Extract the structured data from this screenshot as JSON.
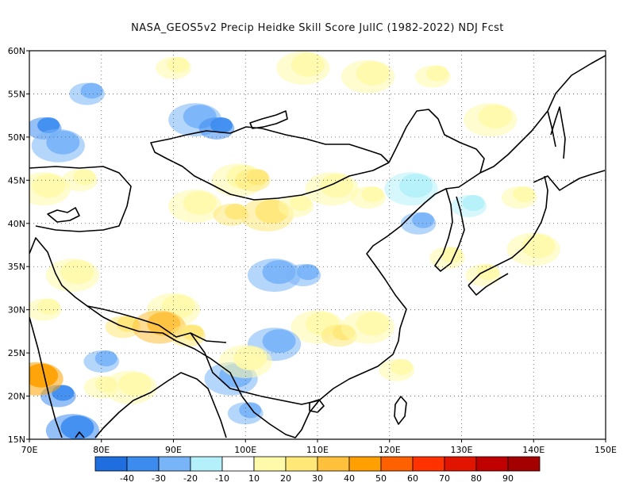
{
  "title": "NASA_GEOS5v2 Precip Heidke Skill Score JulIC (1982-2022) NDJ Fcst",
  "map": {
    "lon_range": [
      70,
      150
    ],
    "lat_range": [
      15,
      60
    ],
    "lon_ticks": [
      "70E",
      "80E",
      "90E",
      "100E",
      "110E",
      "120E",
      "130E",
      "140E",
      "150E"
    ],
    "lat_ticks": [
      "15N",
      "20N",
      "25N",
      "30N",
      "35N",
      "40N",
      "45N",
      "50N",
      "55N",
      "60N"
    ],
    "gridlines": "dotted"
  },
  "colorbar": {
    "labels": [
      "-40",
      "-30",
      "-20",
      "-10",
      "10",
      "20",
      "30",
      "40",
      "50",
      "60",
      "70",
      "80",
      "90"
    ],
    "colors": [
      "#1e6ee0",
      "#3c8cf0",
      "#78b4f8",
      "#b4f0fa",
      "#ffffff",
      "#fffaaa",
      "#ffe878",
      "#ffc03c",
      "#ffa000",
      "#ff6000",
      "#ff3200",
      "#e11400",
      "#c00000",
      "#a50000"
    ]
  },
  "score_patches": [
    {
      "lon": 72,
      "lat": 51,
      "level": -30
    },
    {
      "lon": 74,
      "lat": 49,
      "level": -20
    },
    {
      "lon": 78,
      "lat": 55,
      "level": -20
    },
    {
      "lon": 72,
      "lat": 44,
      "level": 20
    },
    {
      "lon": 77,
      "lat": 45,
      "level": 20
    },
    {
      "lon": 93,
      "lat": 52,
      "level": -20
    },
    {
      "lon": 96,
      "lat": 51,
      "level": -30
    },
    {
      "lon": 99,
      "lat": 45,
      "level": 20
    },
    {
      "lon": 101,
      "lat": 45,
      "level": 30
    },
    {
      "lon": 93,
      "lat": 42,
      "level": 20
    },
    {
      "lon": 98,
      "lat": 41,
      "level": 30
    },
    {
      "lon": 103,
      "lat": 41,
      "level": 30
    },
    {
      "lon": 107,
      "lat": 42,
      "level": 20
    },
    {
      "lon": 112,
      "lat": 44,
      "level": 20
    },
    {
      "lon": 117,
      "lat": 43,
      "level": 20
    },
    {
      "lon": 90,
      "lat": 30,
      "level": 20
    },
    {
      "lon": 83,
      "lat": 28,
      "level": 30
    },
    {
      "lon": 88,
      "lat": 28,
      "level": 40
    },
    {
      "lon": 92,
      "lat": 27,
      "level": 30
    },
    {
      "lon": 110,
      "lat": 28,
      "level": 20
    },
    {
      "lon": 113,
      "lat": 27,
      "level": 30
    },
    {
      "lon": 117,
      "lat": 28,
      "level": 20
    },
    {
      "lon": 80,
      "lat": 21,
      "level": 20
    },
    {
      "lon": 84,
      "lat": 21,
      "level": 20
    },
    {
      "lon": 74,
      "lat": 20,
      "level": -30
    },
    {
      "lon": 76,
      "lat": 16,
      "level": -30
    },
    {
      "lon": 80,
      "lat": 24,
      "level": -20
    },
    {
      "lon": 98,
      "lat": 22,
      "level": -20
    },
    {
      "lon": 100,
      "lat": 18,
      "level": -20
    },
    {
      "lon": 104,
      "lat": 34,
      "level": -20
    },
    {
      "lon": 108,
      "lat": 34,
      "level": -20
    },
    {
      "lon": 104,
      "lat": 26,
      "level": -20
    },
    {
      "lon": 124,
      "lat": 40,
      "level": -20
    },
    {
      "lon": 123,
      "lat": 44,
      "level": -10
    },
    {
      "lon": 131,
      "lat": 42,
      "level": -10
    },
    {
      "lon": 117,
      "lat": 57,
      "level": 20
    },
    {
      "lon": 126,
      "lat": 57,
      "level": 20
    },
    {
      "lon": 108,
      "lat": 58,
      "level": 20
    },
    {
      "lon": 90,
      "lat": 58,
      "level": 20
    },
    {
      "lon": 134,
      "lat": 52,
      "level": 20
    },
    {
      "lon": 138,
      "lat": 43,
      "level": 20
    },
    {
      "lon": 140,
      "lat": 37,
      "level": 20
    },
    {
      "lon": 133,
      "lat": 34,
      "level": 20
    },
    {
      "lon": 71,
      "lat": 22,
      "level": 50
    },
    {
      "lon": 72,
      "lat": 30,
      "level": 20
    },
    {
      "lon": 76,
      "lat": 34,
      "level": 20
    },
    {
      "lon": 121,
      "lat": 23,
      "level": 20
    },
    {
      "lon": 100,
      "lat": 24,
      "level": 20
    },
    {
      "lon": 128,
      "lat": 36,
      "level": 20
    }
  ]
}
